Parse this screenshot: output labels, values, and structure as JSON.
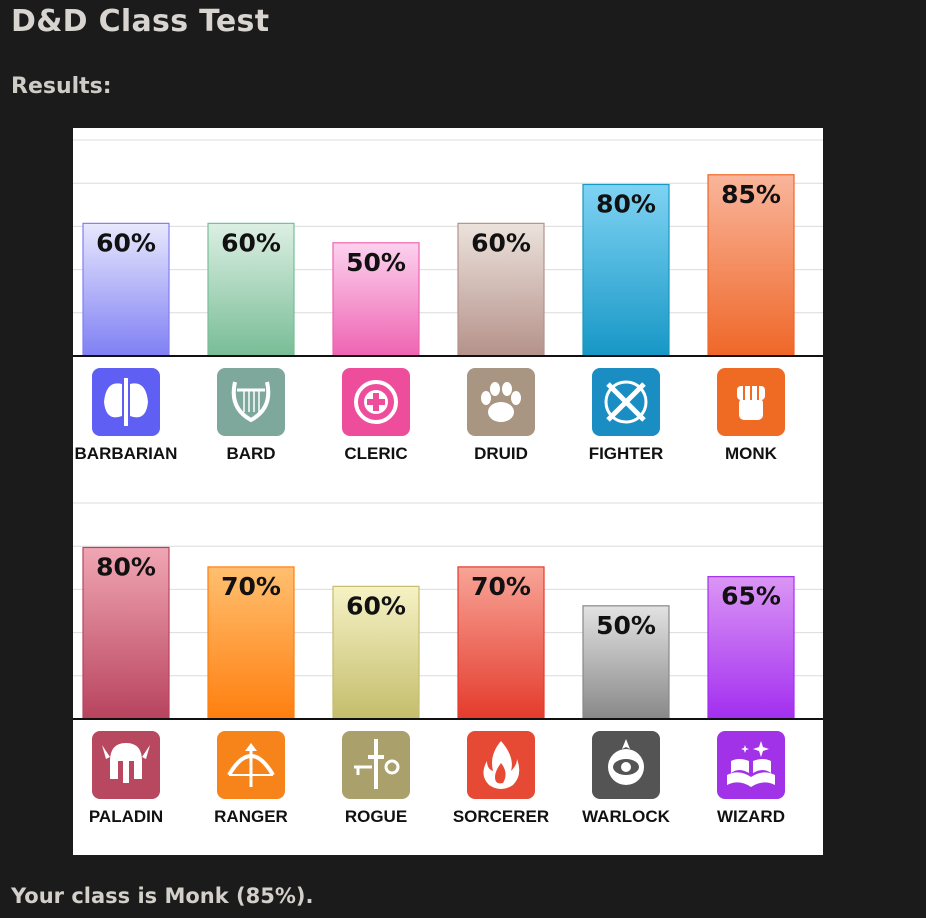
{
  "page": {
    "title": "D&D Class Test",
    "subtitle": "Results:",
    "result_text": "Your class is Monk (85%)."
  },
  "chart_data": [
    {
      "type": "bar",
      "categories": [
        "BARBARIAN",
        "BARD",
        "CLERIC",
        "DRUID",
        "FIGHTER",
        "MONK"
      ],
      "values": [
        60,
        60,
        50,
        60,
        80,
        85
      ],
      "value_labels": [
        "60%",
        "60%",
        "50%",
        "60%",
        "80%",
        "85%"
      ],
      "ylim": [
        0,
        100
      ],
      "grid": true,
      "colors": [
        [
          "#e8e8fd",
          "#7f7ff4"
        ],
        [
          "#dcefe3",
          "#78bd96"
        ],
        [
          "#fcd2ee",
          "#ee64b2"
        ],
        [
          "#ece2dc",
          "#b4928a"
        ],
        [
          "#7fd3f3",
          "#1797c6"
        ],
        [
          "#f9b59b",
          "#ef6728"
        ]
      ],
      "icons": [
        "double-axe-icon",
        "lyre-icon",
        "holy-symbol-icon",
        "paw-icon",
        "crossed-swords-icon",
        "fist-icon"
      ],
      "icon_colors": [
        "#5f5ff3",
        "#7fa89c",
        "#ee4d9b",
        "#a89582",
        "#1a8ec3",
        "#ef6a23"
      ]
    },
    {
      "type": "bar",
      "categories": [
        "PALADIN",
        "RANGER",
        "ROGUE",
        "SORCERER",
        "WARLOCK",
        "WIZARD"
      ],
      "values": [
        80,
        70,
        60,
        70,
        50,
        65
      ],
      "value_labels": [
        "80%",
        "70%",
        "60%",
        "70%",
        "50%",
        "65%"
      ],
      "ylim": [
        0,
        100
      ],
      "grid": true,
      "colors": [
        [
          "#f0a6b4",
          "#b8435e"
        ],
        [
          "#ffbf70",
          "#ff7f0f"
        ],
        [
          "#f6f2c5",
          "#c4bd6c"
        ],
        [
          "#f7a497",
          "#e43b2c"
        ],
        [
          "#e2e2e2",
          "#888888"
        ],
        [
          "#db96f5",
          "#a32ef0"
        ]
      ],
      "icons": [
        "helmet-icon",
        "bow-icon",
        "key-dagger-icon",
        "flame-icon",
        "eye-icon",
        "spellbook-icon"
      ],
      "icon_colors": [
        "#b7485f",
        "#f7841a",
        "#a9a06b",
        "#e64a34",
        "#545454",
        "#a132e8"
      ]
    }
  ]
}
